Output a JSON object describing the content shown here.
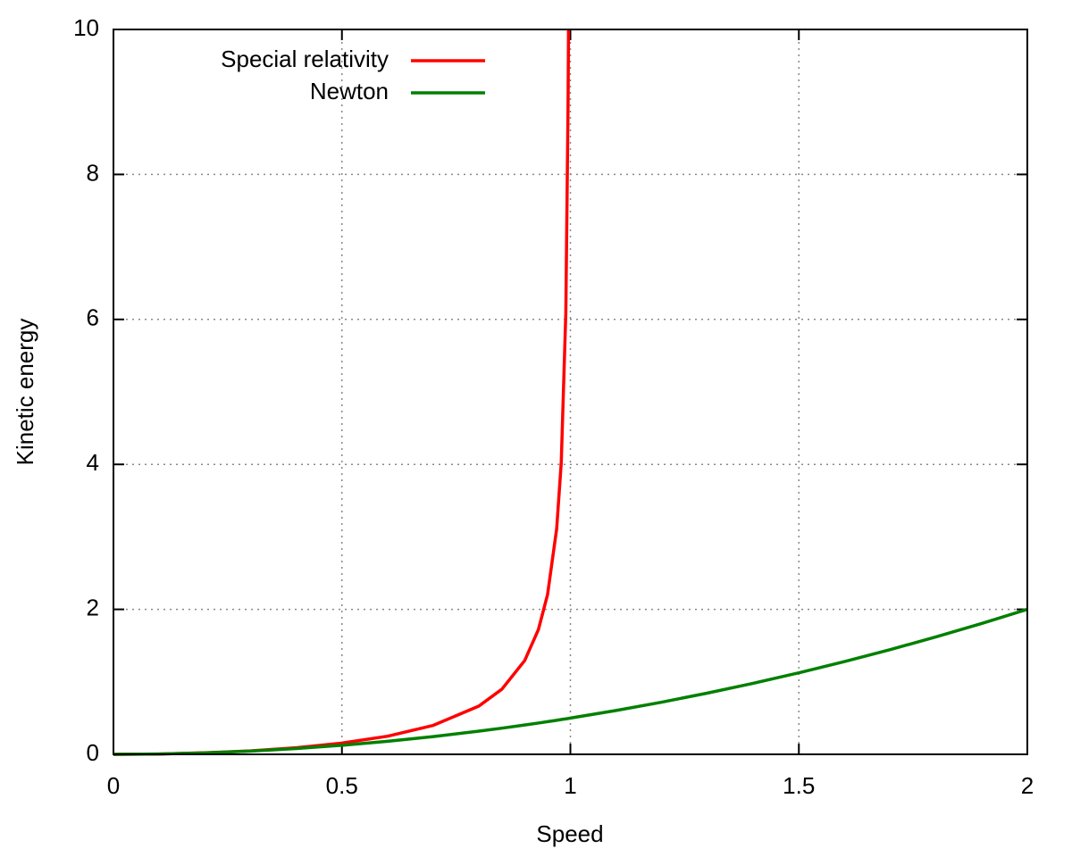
{
  "chart_data": {
    "type": "line",
    "xlabel": "Speed",
    "ylabel": "Kinetic energy",
    "x": [
      0,
      0.1,
      0.2,
      0.3,
      0.4,
      0.5,
      0.6,
      0.7,
      0.8,
      0.85,
      0.9,
      0.93,
      0.95,
      0.97,
      0.98,
      0.99,
      0.995,
      0.9959,
      1,
      1.1,
      1.2,
      1.3,
      1.4,
      1.5,
      1.6,
      1.7,
      1.8,
      1.9,
      2
    ],
    "series": [
      {
        "name": "Special relativity",
        "color": "#ff0000",
        "values": [
          0,
          0.005,
          0.021,
          0.048,
          0.091,
          0.155,
          0.25,
          0.4,
          0.667,
          0.898,
          1.294,
          1.721,
          2.203,
          3.113,
          4.025,
          6.089,
          9.01,
          10,
          null,
          null,
          null,
          null,
          null,
          null,
          null,
          null,
          null,
          null,
          null
        ]
      },
      {
        "name": "Newton",
        "color": "#008000",
        "values": [
          0,
          0.005,
          0.02,
          0.045,
          0.08,
          0.125,
          0.18,
          0.245,
          0.32,
          0.361,
          0.405,
          0.432,
          0.451,
          0.47,
          0.48,
          0.49,
          0.495,
          0.496,
          0.5,
          0.605,
          0.72,
          0.845,
          0.98,
          1.125,
          1.28,
          1.445,
          1.62,
          1.805,
          2
        ]
      }
    ],
    "xlim": [
      0,
      2
    ],
    "xticks": [
      0,
      0.5,
      1,
      1.5,
      2
    ],
    "ylim": [
      0,
      10
    ],
    "yticks": [
      0,
      2,
      4,
      6,
      8,
      10
    ],
    "grid": true,
    "legend": "top-left"
  }
}
